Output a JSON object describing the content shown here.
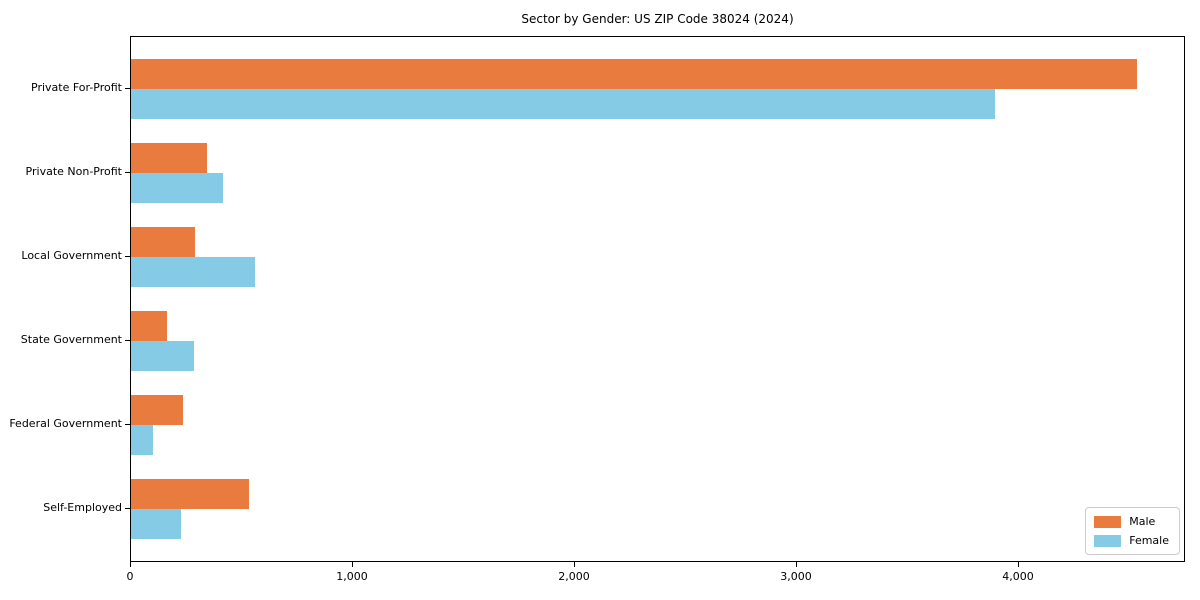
{
  "title": "Sector by Gender: US ZIP Code 38024 (2024)",
  "legend": {
    "items": [
      {
        "label": "Male",
        "color": "#e87b3d"
      },
      {
        "label": "Female",
        "color": "#85cbe5"
      }
    ],
    "position": "lower right"
  },
  "chart_data": {
    "type": "bar",
    "orientation": "horizontal",
    "title": "Sector by Gender: US ZIP Code 38024 (2024)",
    "categories": [
      "Private For-Profit",
      "Private Non-Profit",
      "Local Government",
      "State Government",
      "Federal Government",
      "Self-Employed"
    ],
    "series": [
      {
        "name": "Male",
        "color": "#e87b3d",
        "values": [
          4530,
          340,
          290,
          160,
          235,
          530
        ]
      },
      {
        "name": "Female",
        "color": "#85cbe5",
        "values": [
          3890,
          415,
          560,
          285,
          100,
          225
        ]
      }
    ],
    "xlabel": "",
    "ylabel": "",
    "xlim": [
      0,
      4750
    ],
    "xticks": [
      0,
      1000,
      2000,
      3000,
      4000
    ],
    "xtick_labels": [
      "0",
      "1,000",
      "2,000",
      "3,000",
      "4,000"
    ],
    "grid": false,
    "legend_position": "lower right"
  }
}
